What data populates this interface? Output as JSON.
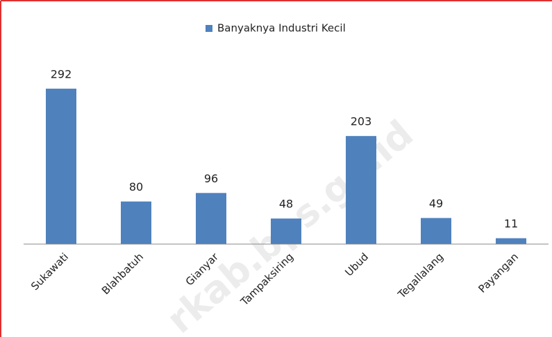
{
  "chart_data": {
    "type": "bar",
    "categories": [
      "Sukawati",
      "Blahbatuh",
      "Gianyar",
      "Tampaksiring",
      "Ubud",
      "Tegallalang",
      "Payangan"
    ],
    "series": [
      {
        "name": "Banyaknya Industri Kecil",
        "color": "#4f81bd",
        "values": [
          292,
          80,
          96,
          48,
          203,
          49,
          11
        ]
      }
    ],
    "ylim": [
      0,
      340
    ],
    "legend": "top",
    "watermark": "rkab.bps.go.id"
  }
}
